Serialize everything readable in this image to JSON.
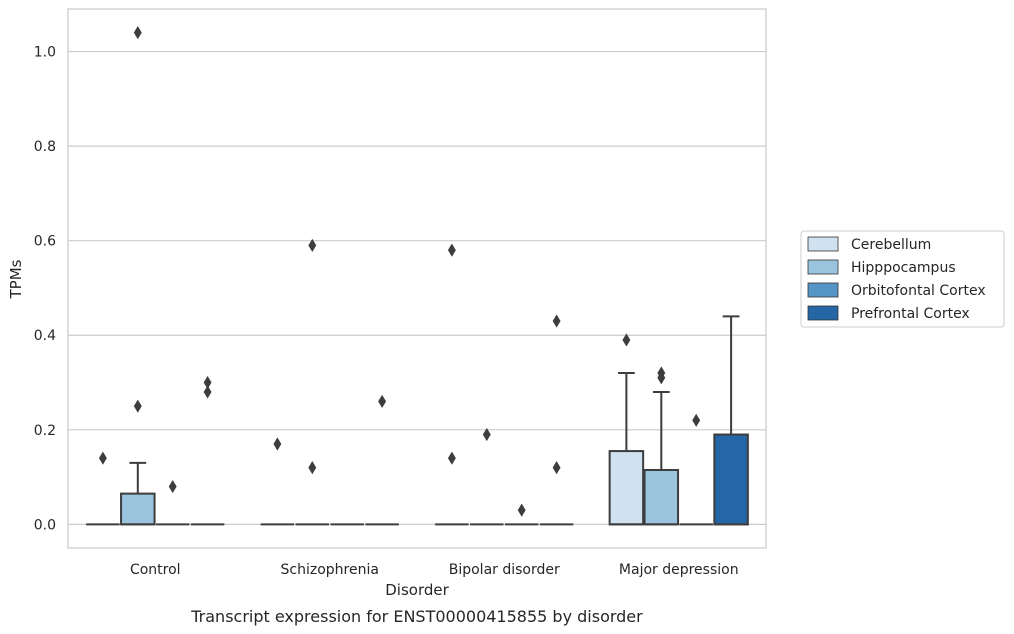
{
  "chart_data": {
    "type": "box",
    "title": "Transcript expression for ENST00000415855 by disorder",
    "xlabel": "Disorder",
    "ylabel": "TPMs",
    "ylim": [
      -0.05,
      1.09
    ],
    "yticks": [
      0.0,
      0.2,
      0.4,
      0.6,
      0.8,
      1.0
    ],
    "ytick_labels": [
      "0.0",
      "0.2",
      "0.4",
      "0.6",
      "0.8",
      "1.0"
    ],
    "grid": true,
    "legend_position": "right",
    "categories": [
      "Control",
      "Schizophrenia",
      "Bipolar disorder",
      "Major depression"
    ],
    "series": [
      {
        "name": "Cerebellum",
        "color": "#d0e1f0",
        "boxes": [
          {
            "q1": 0,
            "median": 0,
            "q3": 0,
            "whisker_low": 0,
            "whisker_high": 0,
            "outliers": [
              0.14
            ]
          },
          {
            "q1": 0,
            "median": 0,
            "q3": 0,
            "whisker_low": 0,
            "whisker_high": 0,
            "outliers": [
              0.17
            ]
          },
          {
            "q1": 0,
            "median": 0,
            "q3": 0,
            "whisker_low": 0,
            "whisker_high": 0,
            "outliers": [
              0.14,
              0.58
            ]
          },
          {
            "q1": 0,
            "median": 0,
            "q3": 0.155,
            "whisker_low": 0,
            "whisker_high": 0.32,
            "outliers": [
              0.39
            ]
          }
        ]
      },
      {
        "name": "Hipppocampus",
        "color": "#9ac4dd",
        "boxes": [
          {
            "q1": 0,
            "median": 0,
            "q3": 0.065,
            "whisker_low": 0,
            "whisker_high": 0.13,
            "outliers": [
              0.25,
              1.04
            ]
          },
          {
            "q1": 0,
            "median": 0,
            "q3": 0,
            "whisker_low": 0,
            "whisker_high": 0,
            "outliers": [
              0.12,
              0.59
            ]
          },
          {
            "q1": 0,
            "median": 0,
            "q3": 0,
            "whisker_low": 0,
            "whisker_high": 0,
            "outliers": [
              0.19
            ]
          },
          {
            "q1": 0,
            "median": 0,
            "q3": 0.115,
            "whisker_low": 0,
            "whisker_high": 0.28,
            "outliers": [
              0.31,
              0.32
            ]
          }
        ]
      },
      {
        "name": "Orbitofontal Cortex",
        "color": "#5596c7",
        "boxes": [
          {
            "q1": 0,
            "median": 0,
            "q3": 0,
            "whisker_low": 0,
            "whisker_high": 0,
            "outliers": [
              0.08
            ]
          },
          {
            "q1": 0,
            "median": 0,
            "q3": 0,
            "whisker_low": 0,
            "whisker_high": 0,
            "outliers": []
          },
          {
            "q1": 0,
            "median": 0,
            "q3": 0,
            "whisker_low": 0,
            "whisker_high": 0,
            "outliers": [
              0.03
            ]
          },
          {
            "q1": 0,
            "median": 0,
            "q3": 0,
            "whisker_low": 0,
            "whisker_high": 0,
            "outliers": [
              0.22
            ]
          }
        ]
      },
      {
        "name": "Prefrontal Cortex",
        "color": "#2566a6",
        "boxes": [
          {
            "q1": 0,
            "median": 0,
            "q3": 0,
            "whisker_low": 0,
            "whisker_high": 0,
            "outliers": [
              0.28,
              0.3
            ]
          },
          {
            "q1": 0,
            "median": 0,
            "q3": 0,
            "whisker_low": 0,
            "whisker_high": 0,
            "outliers": [
              0.26
            ]
          },
          {
            "q1": 0,
            "median": 0,
            "q3": 0,
            "whisker_low": 0,
            "whisker_high": 0,
            "outliers": [
              0.12,
              0.43
            ]
          },
          {
            "q1": 0,
            "median": 0,
            "q3": 0.19,
            "whisker_low": 0,
            "whisker_high": 0.44,
            "outliers": []
          }
        ]
      }
    ]
  }
}
